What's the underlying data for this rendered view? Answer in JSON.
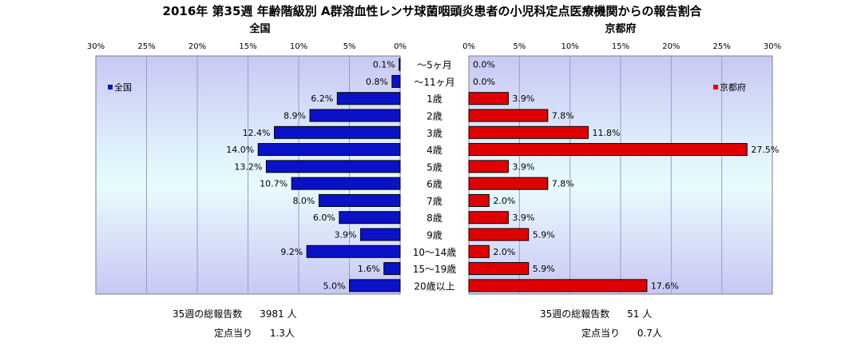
{
  "title": "2016年 第35週 年齢階級別 A群溶血性レンサ球菌咽頭炎患者の小児科定点医療機関からの報告割合",
  "chart_data": {
    "type": "bar",
    "orientation": "horizontal",
    "categories": [
      "〜5ヶ月",
      "〜11ヶ月",
      "1歳",
      "2歳",
      "3歳",
      "4歳",
      "5歳",
      "6歳",
      "7歳",
      "8歳",
      "9歳",
      "10〜14歳",
      "15〜19歳",
      "20歳以上"
    ],
    "panels": [
      {
        "title": "全国",
        "legend": "全国",
        "legend_position": "top-left",
        "direction": "reversed",
        "color": "#0a12c8",
        "xlim": [
          0,
          30
        ],
        "ticks": [
          "0%",
          "5%",
          "10%",
          "15%",
          "20%",
          "25%",
          "30%"
        ],
        "values": [
          0.1,
          0.8,
          6.2,
          8.9,
          12.4,
          14.0,
          13.2,
          10.7,
          8.0,
          6.0,
          3.9,
          9.2,
          1.6,
          5.0
        ],
        "labels": [
          "0.1%",
          "0.8%",
          "6.2%",
          "8.9%",
          "12.4%",
          "14.0%",
          "13.2%",
          "10.7%",
          "8.0%",
          "6.0%",
          "3.9%",
          "9.2%",
          "1.6%",
          "5.0%"
        ]
      },
      {
        "title": "京都府",
        "legend": "京都府",
        "legend_position": "top-right",
        "direction": "normal",
        "color": "#e00000",
        "xlim": [
          0,
          30
        ],
        "ticks": [
          "0%",
          "5%",
          "10%",
          "15%",
          "20%",
          "25%",
          "30%"
        ],
        "values": [
          0.0,
          0.0,
          3.9,
          7.8,
          11.8,
          27.5,
          3.9,
          7.8,
          2.0,
          3.9,
          5.9,
          2.0,
          5.9,
          17.6
        ],
        "labels": [
          "0.0%",
          "0.0%",
          "3.9%",
          "7.8%",
          "11.8%",
          "27.5%",
          "3.9%",
          "7.8%",
          "2.0%",
          "3.9%",
          "5.9%",
          "2.0%",
          "5.9%",
          "17.6%"
        ]
      }
    ],
    "grid": true
  },
  "footer": {
    "left": {
      "total_label": "35週の総報告数",
      "total_value": "3981 人",
      "per_label": "定点当り",
      "per_value": "1.3人"
    },
    "right": {
      "total_label": "35週の総報告数",
      "total_value": "51 人",
      "per_label": "定点当り",
      "per_value": "0.7人"
    }
  }
}
